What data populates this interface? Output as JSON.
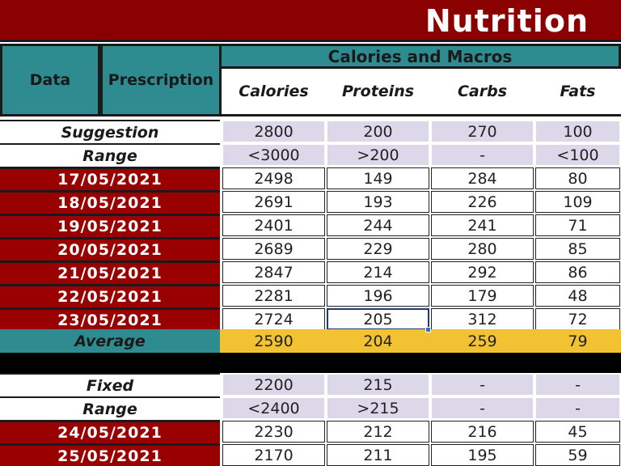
{
  "title": "Nutrition",
  "header": {
    "data": "Data",
    "prescription": "Prescription",
    "group": "Calories and Macros",
    "columns": [
      "Calories",
      "Proteins",
      "Carbs",
      "Fats"
    ]
  },
  "section1": {
    "suggestion": {
      "label": "Suggestion",
      "values": [
        "2800",
        "200",
        "270",
        "100"
      ]
    },
    "range": {
      "label": "Range",
      "values": [
        "<3000",
        ">200",
        "-",
        "<100"
      ]
    },
    "days": [
      {
        "date": "17/05/2021",
        "values": [
          "2498",
          "149",
          "284",
          "80"
        ]
      },
      {
        "date": "18/05/2021",
        "values": [
          "2691",
          "193",
          "226",
          "109"
        ]
      },
      {
        "date": "19/05/2021",
        "values": [
          "2401",
          "244",
          "241",
          "71"
        ]
      },
      {
        "date": "20/05/2021",
        "values": [
          "2689",
          "229",
          "280",
          "85"
        ]
      },
      {
        "date": "21/05/2021",
        "values": [
          "2847",
          "214",
          "292",
          "86"
        ]
      },
      {
        "date": "22/05/2021",
        "values": [
          "2281",
          "196",
          "179",
          "48"
        ]
      },
      {
        "date": "23/05/2021",
        "values": [
          "2724",
          "205",
          "312",
          "72"
        ]
      }
    ],
    "average": {
      "label": "Average",
      "values": [
        "2590",
        "204",
        "259",
        "79"
      ]
    }
  },
  "section2": {
    "fixed": {
      "label": "Fixed",
      "values": [
        "2200",
        "215",
        "-",
        "-"
      ]
    },
    "range": {
      "label": "Range",
      "values": [
        "<2400",
        ">215",
        "-",
        "-"
      ]
    },
    "days": [
      {
        "date": "24/05/2021",
        "values": [
          "2230",
          "212",
          "216",
          "45"
        ]
      },
      {
        "date": "25/05/2021",
        "values": [
          "2170",
          "211",
          "195",
          "59"
        ]
      }
    ]
  },
  "colors": {
    "title_bg": "#8b0000",
    "header_teal": "#2e8b8f",
    "date_red": "#990000",
    "lavender": "#ddd7ea",
    "average_yellow": "#f2c232"
  }
}
